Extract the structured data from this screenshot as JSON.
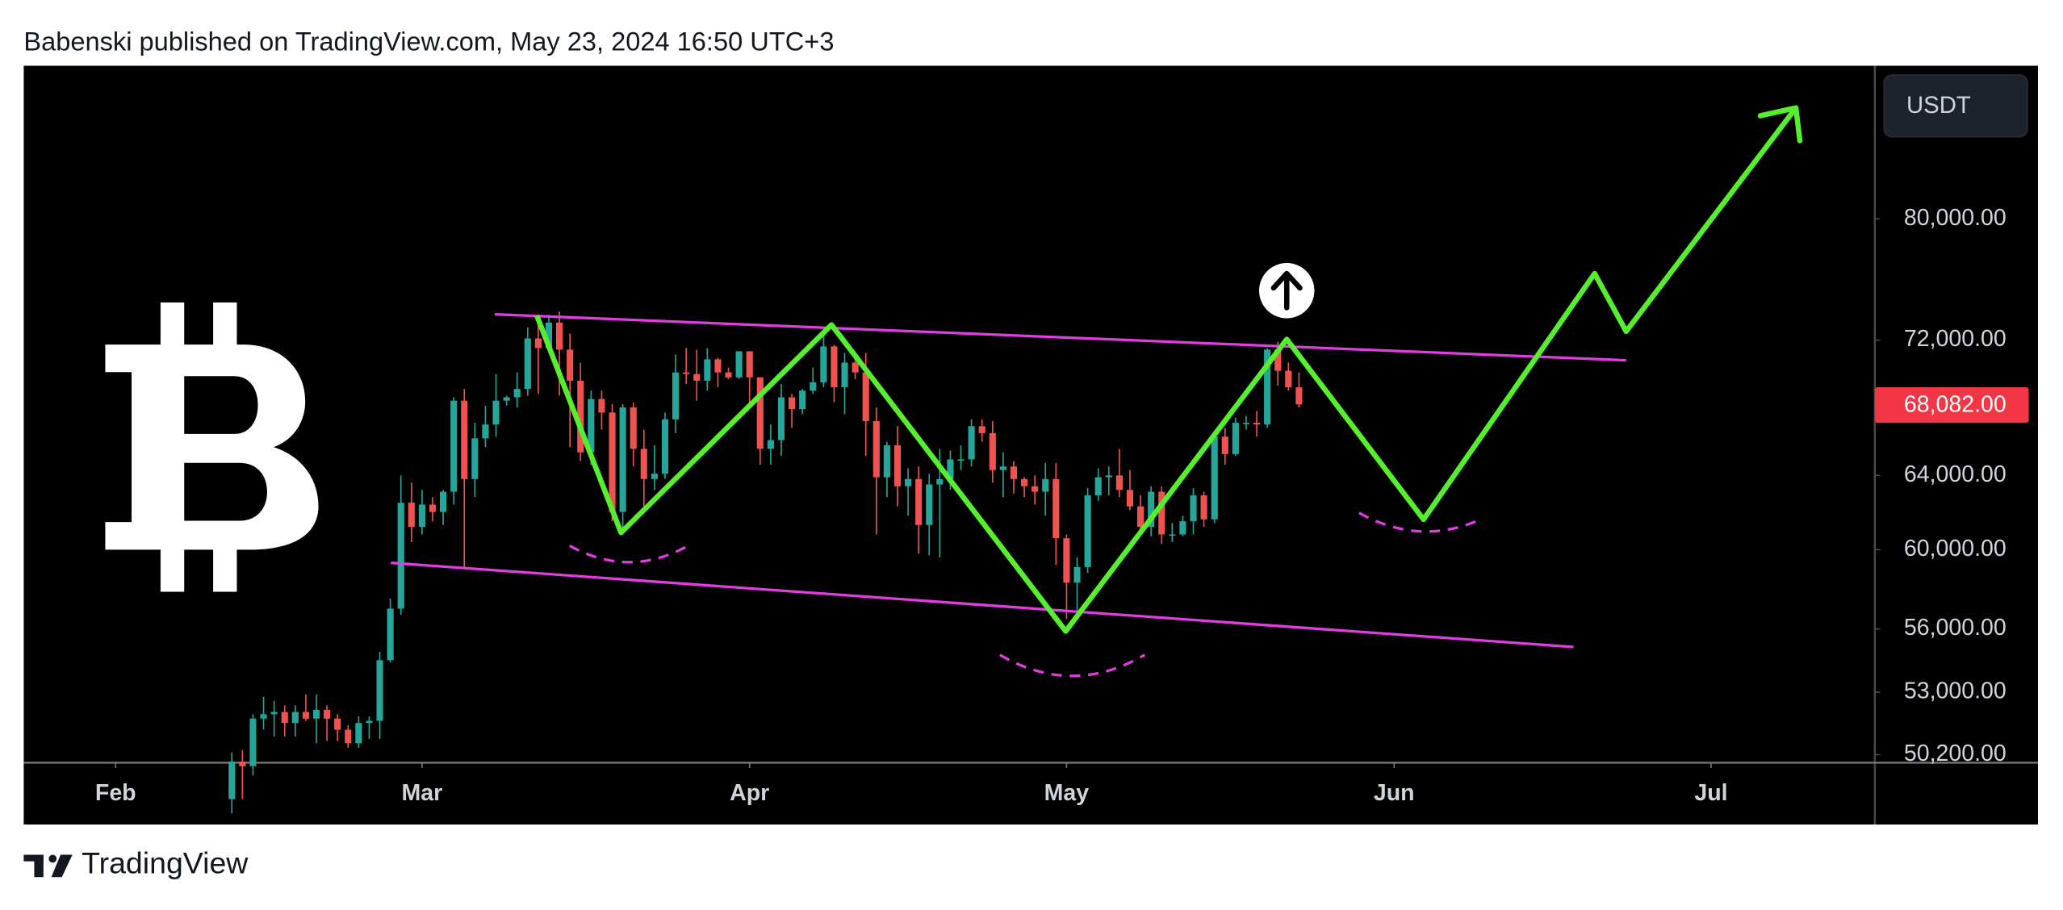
{
  "chart_data": {
    "type": "candlestick",
    "title": "Babenski published on TradingView.com, May 23, 2024 16:50 UTC+3",
    "currency_label": "USDT",
    "brand": "TradingView",
    "log_scale": true,
    "grid": false,
    "up_color": "#26a69a",
    "down_color": "#ef5350",
    "xlim": [
      -8.7,
      166.5
    ],
    "ylim": [
      49850,
      91400
    ],
    "xticks": [
      {
        "value": 0,
        "label": "Feb"
      },
      {
        "value": 29,
        "label": "Mar"
      },
      {
        "value": 60,
        "label": "Apr"
      },
      {
        "value": 90,
        "label": "May"
      },
      {
        "value": 121,
        "label": "Jun"
      },
      {
        "value": 151,
        "label": "Jul"
      }
    ],
    "yticks": [
      {
        "value": 50200,
        "label": "50,200.00"
      },
      {
        "value": 53000,
        "label": "53,000.00"
      },
      {
        "value": 56000,
        "label": "56,000.00"
      },
      {
        "value": 60000,
        "label": "60,000.00"
      },
      {
        "value": 64000,
        "label": "64,000.00"
      },
      {
        "value": 72000,
        "label": "72,000.00"
      },
      {
        "value": 80000,
        "label": "80,000.00"
      }
    ],
    "series": [
      {
        "x": [
          11,
          12,
          13,
          14,
          15,
          16,
          17,
          18,
          19,
          20,
          21,
          22,
          23,
          24,
          25,
          26,
          27,
          28,
          29,
          30,
          31,
          32,
          33,
          34,
          35,
          36,
          37,
          38,
          39,
          40,
          41,
          42,
          43,
          44,
          45,
          46,
          47,
          48,
          49,
          50,
          51,
          52,
          53,
          54,
          55,
          56,
          57,
          58,
          59,
          60,
          61,
          62,
          63,
          64,
          65,
          66,
          67,
          68,
          69,
          70,
          71,
          72,
          73,
          74,
          75,
          76,
          77,
          78,
          79,
          80,
          81,
          82,
          83,
          84,
          85,
          86,
          87,
          88,
          89,
          90,
          91,
          92,
          93,
          94,
          95,
          96,
          97,
          98,
          99,
          100,
          101,
          102,
          103,
          104,
          105,
          106,
          107,
          108,
          109,
          110,
          111,
          112
        ],
        "open": [
          48300,
          49900,
          49700,
          51800,
          52000,
          52100,
          51600,
          52100,
          51800,
          52200,
          51800,
          51300,
          50700,
          51600,
          51700,
          54500,
          57000,
          62500,
          61200,
          62400,
          62000,
          63100,
          68300,
          63800,
          66100,
          66900,
          68300,
          68500,
          69000,
          72100,
          71500,
          73100,
          71400,
          69500,
          65300,
          68400,
          67600,
          62000,
          67900,
          65500,
          63800,
          64100,
          67200,
          70000,
          69900,
          69500,
          70800,
          70000,
          69700,
          71300,
          69700,
          65500,
          66000,
          68500,
          67800,
          68900,
          69400,
          71600,
          69100,
          70600,
          70000,
          67100,
          63900,
          65700,
          63400,
          63800,
          61300,
          63500,
          63800,
          64900,
          64900,
          66800,
          66400,
          64300,
          64500,
          63800,
          63400,
          63100,
          63800,
          60600,
          58300,
          59100,
          62900,
          63900,
          64000,
          63200,
          62300,
          61200,
          63100,
          60800,
          60800,
          61500,
          62900,
          61600,
          66200,
          65200,
          67000,
          67000,
          66900,
          71400,
          70100,
          69100
        ],
        "high": [
          50300,
          50400,
          52000,
          52800,
          52600,
          52400,
          52400,
          52900,
          52900,
          52400,
          52000,
          51500,
          51900,
          51900,
          54900,
          57500,
          64000,
          63600,
          63200,
          62800,
          63200,
          68500,
          69000,
          67000,
          68000,
          69900,
          68600,
          70000,
          72800,
          73000,
          73600,
          73800,
          72400,
          70600,
          68900,
          68900,
          68100,
          68100,
          68200,
          66600,
          65700,
          67600,
          71100,
          71500,
          71400,
          71500,
          70900,
          70300,
          71300,
          71300,
          69700,
          66900,
          69300,
          68700,
          69000,
          70300,
          72700,
          71700,
          71200,
          71300,
          71200,
          67900,
          65900,
          66800,
          64400,
          64500,
          64100,
          65500,
          65400,
          65700,
          67200,
          67200,
          67100,
          65300,
          64800,
          63900,
          64000,
          64700,
          64700,
          60800,
          59600,
          63300,
          64400,
          64500,
          65500,
          64300,
          62900,
          63400,
          63400,
          61400,
          61800,
          63300,
          63100,
          66400,
          66700,
          67300,
          67400,
          67700,
          71500,
          71900,
          70600,
          70000
        ],
        "low": [
          47700,
          48300,
          49300,
          51300,
          51000,
          51000,
          51000,
          51700,
          50700,
          50800,
          50800,
          50500,
          50500,
          50900,
          50900,
          54400,
          56700,
          60400,
          60800,
          61500,
          61300,
          62400,
          59000,
          62800,
          65600,
          66200,
          68000,
          67900,
          68600,
          68700,
          71300,
          68600,
          65600,
          64800,
          64600,
          66600,
          61500,
          60800,
          64500,
          62300,
          63200,
          63800,
          66400,
          69300,
          68300,
          68900,
          69100,
          69600,
          69600,
          68100,
          64600,
          64600,
          65100,
          66700,
          67500,
          68700,
          69100,
          68200,
          67500,
          69600,
          65100,
          60800,
          62800,
          62300,
          61800,
          59800,
          59700,
          59600,
          63200,
          64300,
          64500,
          65900,
          63600,
          62800,
          63000,
          62800,
          62400,
          61800,
          59200,
          56500,
          56900,
          58800,
          62600,
          62900,
          62800,
          62100,
          60800,
          60700,
          60300,
          60400,
          60700,
          60800,
          61200,
          61400,
          64600,
          65100,
          66600,
          66200,
          66700,
          69200,
          68900,
          67900
        ],
        "close": [
          49900,
          49700,
          51800,
          52000,
          52100,
          51600,
          52100,
          51800,
          52200,
          51800,
          51300,
          50700,
          51600,
          51700,
          54500,
          57000,
          62500,
          61200,
          62400,
          62000,
          63100,
          68300,
          63800,
          66100,
          66900,
          68300,
          68500,
          69000,
          72100,
          71500,
          73100,
          71400,
          69500,
          65300,
          68400,
          67600,
          62000,
          67900,
          65500,
          63800,
          64100,
          67200,
          70000,
          69900,
          69500,
          70800,
          70000,
          69700,
          71300,
          69700,
          65500,
          66000,
          68500,
          67800,
          68900,
          69400,
          71600,
          69100,
          70600,
          70000,
          67100,
          63900,
          65700,
          63400,
          63800,
          61300,
          63500,
          63800,
          64900,
          64900,
          66800,
          66400,
          64300,
          64500,
          63800,
          63400,
          63100,
          63800,
          60600,
          58300,
          59100,
          62900,
          63900,
          64000,
          63200,
          62300,
          61200,
          63100,
          60800,
          60800,
          61500,
          62900,
          61600,
          66200,
          65200,
          67000,
          67000,
          66900,
          71400,
          70100,
          69100,
          68082
        ],
        "last_label": "68,082.00",
        "last_color": "#f23645"
      }
    ]
  }
}
